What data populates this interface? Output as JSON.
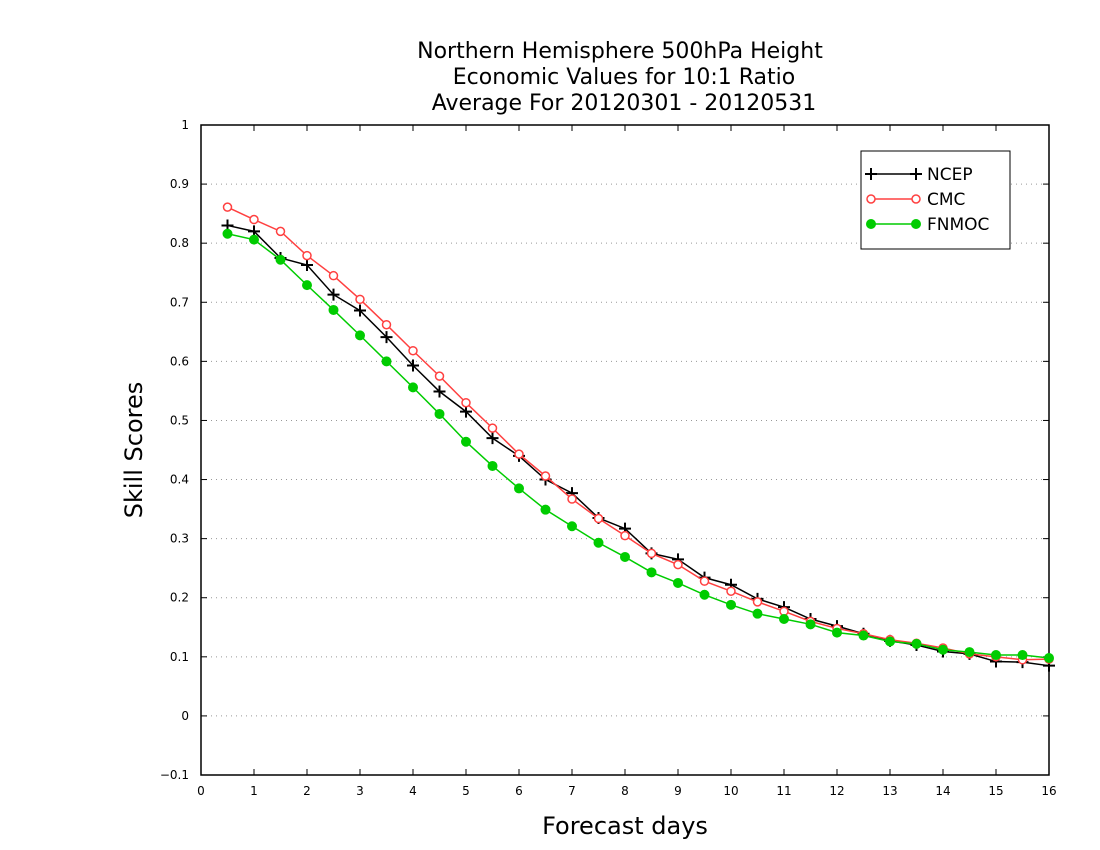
{
  "chart_data": {
    "type": "line",
    "title_lines": [
      "Northern Hemisphere 500hPa Height",
      "Economic Values for 10:1 Ratio",
      "Average For 20120301 - 20120531"
    ],
    "xlabel": "Forecast days",
    "ylabel": "Skill Scores",
    "xlim": [
      0,
      16
    ],
    "ylim": [
      -0.1,
      1
    ],
    "x_ticks": [
      "0",
      "1",
      "2",
      "3",
      "4",
      "5",
      "6",
      "7",
      "8",
      "9",
      "10",
      "11",
      "12",
      "13",
      "14",
      "15",
      "16"
    ],
    "y_ticks": [
      "−0.1",
      "0",
      "0.1",
      "0.2",
      "0.3",
      "0.4",
      "0.5",
      "0.6",
      "0.7",
      "0.8",
      "0.9",
      "1"
    ],
    "grid": "dotted horizontal",
    "legend_position": "top-right",
    "x": [
      0.5,
      1,
      1.5,
      2,
      2.5,
      3,
      3.5,
      4,
      4.5,
      5,
      5.5,
      6,
      6.5,
      7,
      7.5,
      8,
      8.5,
      9,
      9.5,
      10,
      10.5,
      11,
      11.5,
      12,
      12.5,
      13,
      13.5,
      14,
      14.5,
      15,
      15.5,
      16
    ],
    "series": [
      {
        "name": "NCEP",
        "color": "#000000",
        "marker": "plus",
        "values": [
          0.83,
          0.82,
          0.775,
          0.763,
          0.713,
          0.686,
          0.641,
          0.593,
          0.549,
          0.515,
          0.47,
          0.44,
          0.4,
          0.377,
          0.335,
          0.317,
          0.275,
          0.265,
          0.234,
          0.222,
          0.198,
          0.184,
          0.164,
          0.152,
          0.139,
          0.127,
          0.12,
          0.109,
          0.105,
          0.092,
          0.091,
          0.085
        ]
      },
      {
        "name": "CMC",
        "color": "#ff4040",
        "marker": "open-circle",
        "values": [
          0.861,
          0.84,
          0.82,
          0.779,
          0.745,
          0.705,
          0.662,
          0.618,
          0.575,
          0.53,
          0.487,
          0.443,
          0.406,
          0.367,
          0.334,
          0.305,
          0.275,
          0.256,
          0.228,
          0.211,
          0.193,
          0.177,
          0.16,
          0.148,
          0.139,
          0.129,
          0.123,
          0.115,
          0.105,
          0.1,
          0.095,
          0.096
        ]
      },
      {
        "name": "FNMOC",
        "color": "#00cc00",
        "marker": "filled-circle",
        "values": [
          0.816,
          0.806,
          0.772,
          0.729,
          0.687,
          0.644,
          0.6,
          0.556,
          0.511,
          0.464,
          0.423,
          0.385,
          0.349,
          0.321,
          0.293,
          0.269,
          0.243,
          0.225,
          0.205,
          0.188,
          0.173,
          0.164,
          0.155,
          0.141,
          0.136,
          0.126,
          0.122,
          0.112,
          0.108,
          0.103,
          0.103,
          0.098
        ]
      }
    ]
  }
}
